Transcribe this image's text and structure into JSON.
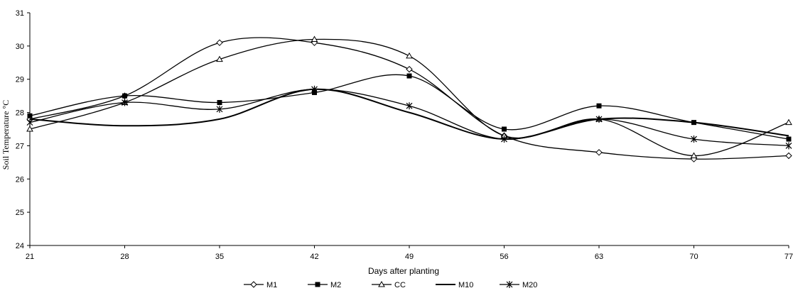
{
  "chart_data": {
    "type": "line",
    "xlabel": "Days after planting",
    "ylabel": "Soil Temperature °C",
    "x": [
      21,
      28,
      35,
      42,
      49,
      56,
      63,
      70,
      77
    ],
    "x_tick_labels": [
      "21",
      "28",
      "35",
      "42",
      "49",
      "56",
      "63",
      "70",
      "77"
    ],
    "ylim": [
      24,
      31
    ],
    "y_ticks": [
      24,
      25,
      26,
      27,
      28,
      29,
      30,
      31
    ],
    "y_tick_labels": [
      "24",
      "25",
      "26",
      "27",
      "28",
      "29",
      "30",
      "31"
    ],
    "grid": false,
    "legend_position": "bottom",
    "series": [
      {
        "name": "M1",
        "marker": "diamond",
        "values": [
          27.8,
          28.5,
          30.1,
          30.1,
          29.3,
          27.3,
          26.8,
          26.6,
          26.7
        ]
      },
      {
        "name": "M2",
        "marker": "square",
        "values": [
          27.9,
          28.5,
          28.3,
          28.6,
          29.1,
          27.5,
          28.2,
          27.7,
          27.2
        ]
      },
      {
        "name": "CC",
        "marker": "triangle",
        "values": [
          27.5,
          28.3,
          29.6,
          30.2,
          29.7,
          27.3,
          27.8,
          26.7,
          27.7
        ]
      },
      {
        "name": "M10",
        "marker": "none",
        "values": [
          27.8,
          27.6,
          27.8,
          28.7,
          28.0,
          27.2,
          27.8,
          27.7,
          27.3
        ]
      },
      {
        "name": "M20",
        "marker": "star",
        "values": [
          27.7,
          28.3,
          28.1,
          28.7,
          28.2,
          27.2,
          27.8,
          27.2,
          27.0
        ]
      }
    ]
  }
}
